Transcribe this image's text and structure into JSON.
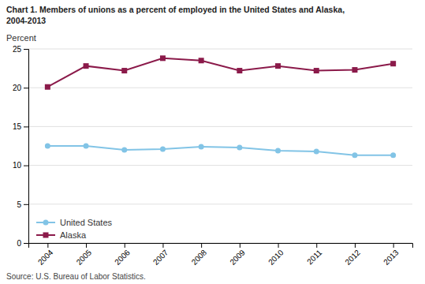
{
  "chart_data": {
    "type": "line",
    "title": "Chart 1. Members of unions as a percent of employed in the United States and Alaska,",
    "subtitle": "2004-2013",
    "y_label": "Percent",
    "annotations": [
      "Source: U.S. Bureau of Labor Statistics."
    ],
    "x": [
      2004,
      2005,
      2006,
      2007,
      2008,
      2009,
      2010,
      2011,
      2012,
      2013
    ],
    "series": [
      {
        "name": "United States",
        "color": "#82c4e6",
        "marker": "circle",
        "line_style": "solid",
        "values": [
          12.5,
          12.5,
          12.0,
          12.1,
          12.4,
          12.3,
          11.9,
          11.8,
          11.3,
          11.3
        ]
      },
      {
        "name": "Alaska",
        "color": "#8b1a4a",
        "marker": "square",
        "line_style": "solid",
        "values": [
          20.1,
          22.8,
          22.2,
          23.8,
          23.5,
          22.2,
          22.8,
          22.2,
          22.3,
          23.1
        ]
      }
    ],
    "xlim": [
      2003.5,
      2013.5
    ],
    "xticks": [
      2004,
      2005,
      2006,
      2007,
      2008,
      2009,
      2010,
      2011,
      2012,
      2013
    ],
    "ylim": [
      0,
      25
    ],
    "yticks": [
      0,
      5,
      10,
      15,
      20,
      25
    ],
    "grid": true,
    "legend": "lower left"
  }
}
